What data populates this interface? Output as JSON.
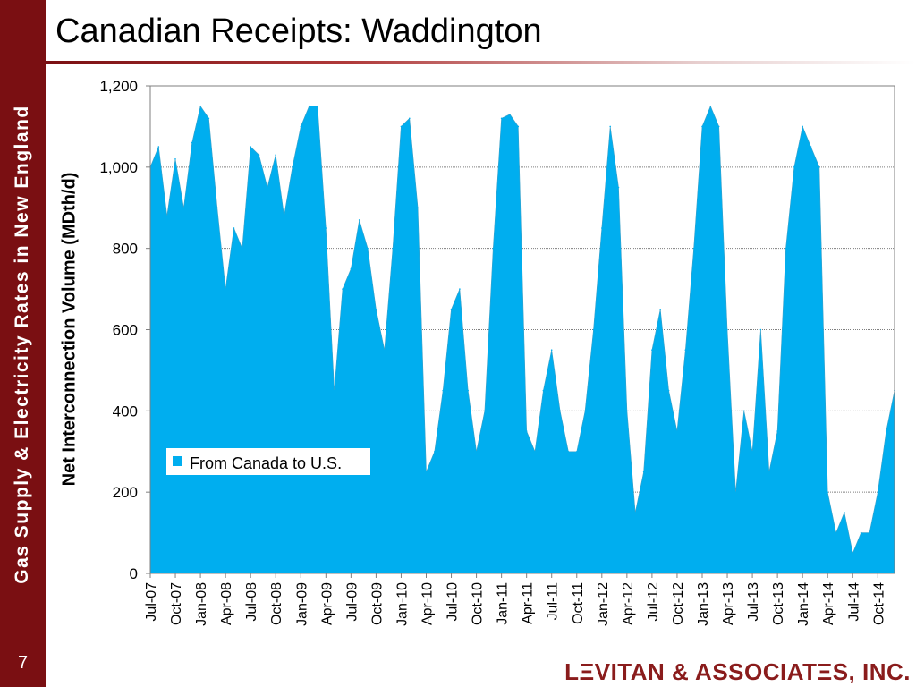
{
  "sidebar": {
    "text": "Gas Supply & Electricity Rates in New England",
    "page_number": "7"
  },
  "slide": {
    "title": "Canadian Receipts: Waddington"
  },
  "logo": {
    "text": "LΞVITAN & ASSOCIATΞS, INC."
  },
  "colors": {
    "series": "#00aeef",
    "sidebar": "#7a0f12",
    "logo": "#8a1c1c"
  },
  "chart_data": {
    "type": "area",
    "title": "",
    "xlabel": "",
    "ylabel": "Net Interconnection Volume (MDth/d)",
    "ylim": [
      0,
      1200
    ],
    "yticks": [
      0,
      200,
      400,
      600,
      800,
      1000,
      1200
    ],
    "ytick_labels": [
      "0",
      "200",
      "400",
      "600",
      "800",
      "1,000",
      "1,200"
    ],
    "grid": true,
    "legend": "center-left",
    "categories": [
      "Jul-07",
      "Oct-07",
      "Jan-08",
      "Apr-08",
      "Jul-08",
      "Oct-08",
      "Jan-09",
      "Apr-09",
      "Jul-09",
      "Oct-09",
      "Jan-10",
      "Apr-10",
      "Jul-10",
      "Oct-10",
      "Jan-11",
      "Apr-11",
      "Jul-11",
      "Oct-11",
      "Jan-12",
      "Apr-12",
      "Jul-12",
      "Oct-12",
      "Jan-13",
      "Apr-13",
      "Jul-13",
      "Oct-13",
      "Jan-14",
      "Apr-14",
      "Jul-14",
      "Oct-14"
    ],
    "series": [
      {
        "name": "From Canada to U.S.",
        "x": [
          "Jul-07",
          "Aug-07",
          "Sep-07",
          "Oct-07",
          "Nov-07",
          "Dec-07",
          "Jan-08",
          "Feb-08",
          "Mar-08",
          "Apr-08",
          "May-08",
          "Jun-08",
          "Jul-08",
          "Aug-08",
          "Sep-08",
          "Oct-08",
          "Nov-08",
          "Dec-08",
          "Jan-09",
          "Feb-09",
          "Mar-09",
          "Apr-09",
          "May-09",
          "Jun-09",
          "Jul-09",
          "Aug-09",
          "Sep-09",
          "Oct-09",
          "Nov-09",
          "Dec-09",
          "Jan-10",
          "Feb-10",
          "Mar-10",
          "Apr-10",
          "May-10",
          "Jun-10",
          "Jul-10",
          "Aug-10",
          "Sep-10",
          "Oct-10",
          "Nov-10",
          "Dec-10",
          "Jan-11",
          "Feb-11",
          "Mar-11",
          "Apr-11",
          "May-11",
          "Jun-11",
          "Jul-11",
          "Aug-11",
          "Sep-11",
          "Oct-11",
          "Nov-11",
          "Dec-11",
          "Jan-12",
          "Feb-12",
          "Mar-12",
          "Apr-12",
          "May-12",
          "Jun-12",
          "Jul-12",
          "Aug-12",
          "Sep-12",
          "Oct-12",
          "Nov-12",
          "Dec-12",
          "Jan-13",
          "Feb-13",
          "Mar-13",
          "Apr-13",
          "May-13",
          "Jun-13",
          "Jul-13",
          "Aug-13",
          "Sep-13",
          "Oct-13",
          "Nov-13",
          "Dec-13",
          "Jan-14",
          "Feb-14",
          "Mar-14",
          "Apr-14",
          "May-14",
          "Jun-14",
          "Jul-14",
          "Aug-14",
          "Sep-14",
          "Oct-14",
          "Nov-14",
          "Dec-14"
        ],
        "values": [
          1000,
          1050,
          880,
          1020,
          900,
          1060,
          1150,
          1120,
          900,
          700,
          850,
          800,
          1050,
          1030,
          950,
          1030,
          880,
          1000,
          1100,
          1150,
          1150,
          850,
          450,
          700,
          750,
          870,
          800,
          650,
          550,
          800,
          1100,
          1120,
          900,
          250,
          300,
          450,
          650,
          700,
          450,
          300,
          400,
          800,
          1120,
          1130,
          1100,
          350,
          300,
          450,
          550,
          400,
          300,
          300,
          400,
          600,
          850,
          1100,
          950,
          400,
          150,
          250,
          550,
          650,
          450,
          350,
          550,
          800,
          1100,
          1150,
          1100,
          600,
          200,
          400,
          300,
          600,
          250,
          350,
          800,
          1000,
          1100,
          1050,
          1000,
          200,
          100,
          150,
          50,
          100,
          100,
          200,
          350,
          450
        ]
      }
    ]
  }
}
